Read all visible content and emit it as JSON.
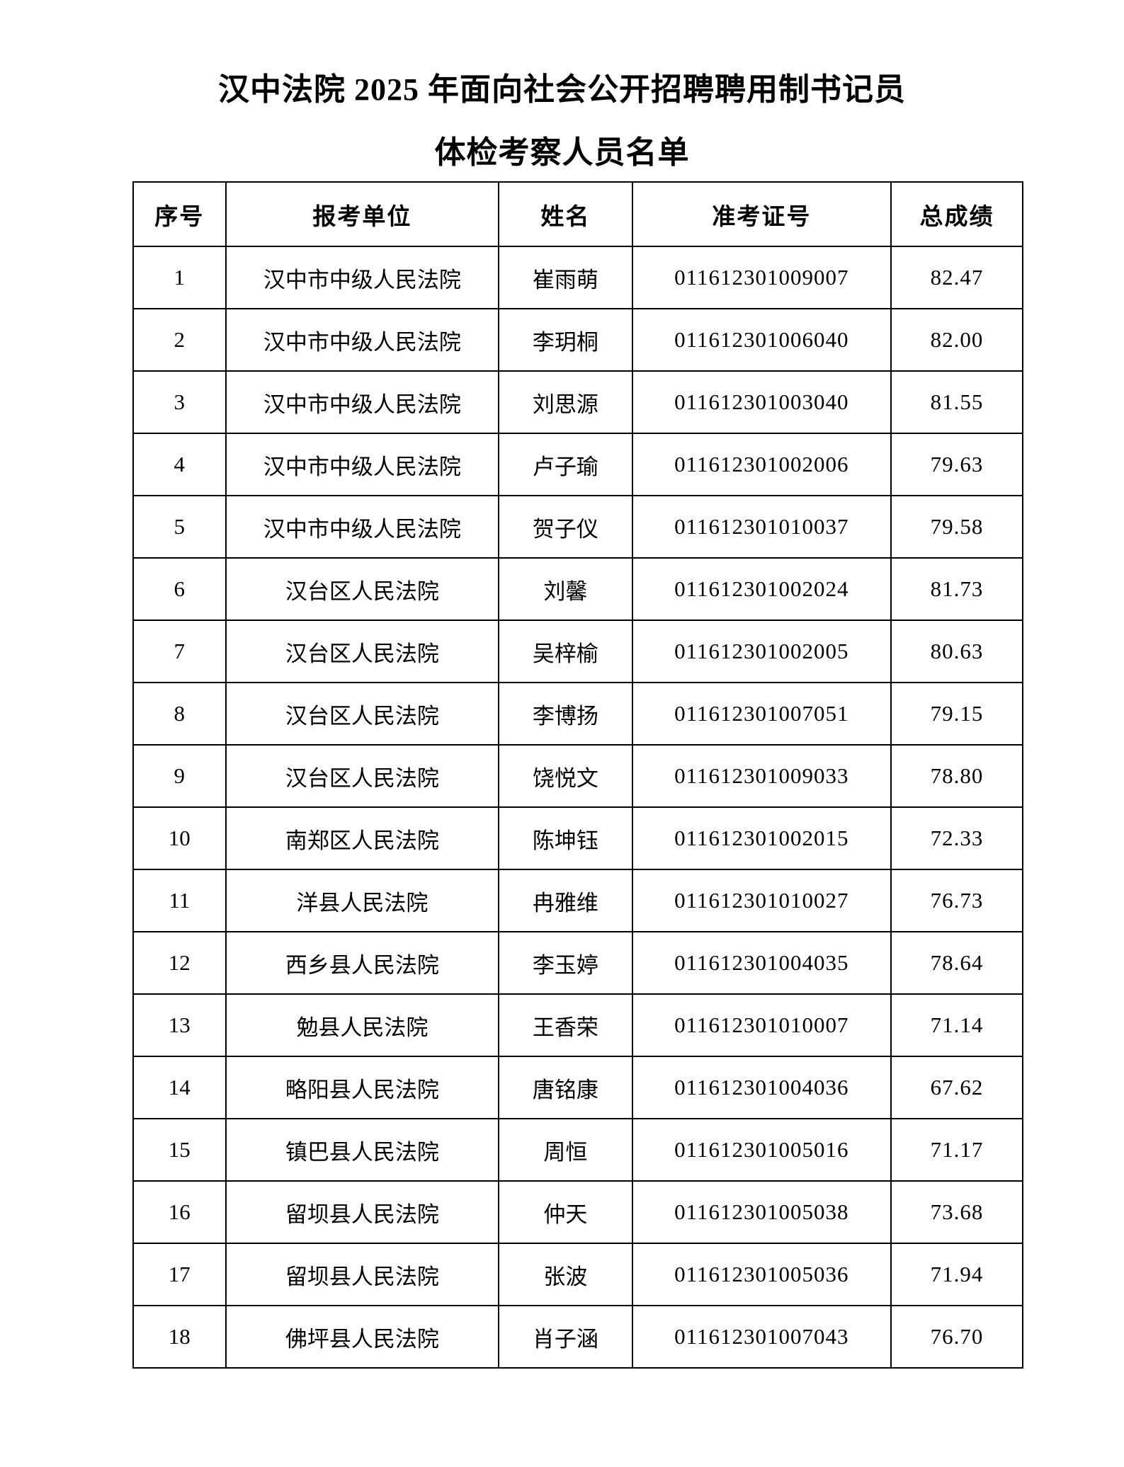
{
  "page": {
    "title_line1": "汉中法院 2025 年面向社会公开招聘聘用制书记员",
    "title_line2": "体检考察人员名单"
  },
  "table": {
    "headers": [
      "序号",
      "报考单位",
      "姓名",
      "准考证号",
      "总成绩"
    ],
    "rows": [
      {
        "no": "1",
        "unit": "汉中市中级人民法院",
        "name": "崔雨萌",
        "ticket": "011612301009007",
        "score": "82.47"
      },
      {
        "no": "2",
        "unit": "汉中市中级人民法院",
        "name": "李玥桐",
        "ticket": "011612301006040",
        "score": "82.00"
      },
      {
        "no": "3",
        "unit": "汉中市中级人民法院",
        "name": "刘思源",
        "ticket": "011612301003040",
        "score": "81.55"
      },
      {
        "no": "4",
        "unit": "汉中市中级人民法院",
        "name": "卢子瑜",
        "ticket": "011612301002006",
        "score": "79.63"
      },
      {
        "no": "5",
        "unit": "汉中市中级人民法院",
        "name": "贺子仪",
        "ticket": "011612301010037",
        "score": "79.58"
      },
      {
        "no": "6",
        "unit": "汉台区人民法院",
        "name": "刘馨",
        "ticket": "011612301002024",
        "score": "81.73"
      },
      {
        "no": "7",
        "unit": "汉台区人民法院",
        "name": "吴梓榆",
        "ticket": "011612301002005",
        "score": "80.63"
      },
      {
        "no": "8",
        "unit": "汉台区人民法院",
        "name": "李博扬",
        "ticket": "011612301007051",
        "score": "79.15"
      },
      {
        "no": "9",
        "unit": "汉台区人民法院",
        "name": "饶悦文",
        "ticket": "011612301009033",
        "score": "78.80"
      },
      {
        "no": "10",
        "unit": "南郑区人民法院",
        "name": "陈坤钰",
        "ticket": "011612301002015",
        "score": "72.33"
      },
      {
        "no": "11",
        "unit": "洋县人民法院",
        "name": "冉雅维",
        "ticket": "011612301010027",
        "score": "76.73"
      },
      {
        "no": "12",
        "unit": "西乡县人民法院",
        "name": "李玉婷",
        "ticket": "011612301004035",
        "score": "78.64"
      },
      {
        "no": "13",
        "unit": "勉县人民法院",
        "name": "王香荣",
        "ticket": "011612301010007",
        "score": "71.14"
      },
      {
        "no": "14",
        "unit": "略阳县人民法院",
        "name": "唐铭康",
        "ticket": "011612301004036",
        "score": "67.62"
      },
      {
        "no": "15",
        "unit": "镇巴县人民法院",
        "name": "周恒",
        "ticket": "011612301005016",
        "score": "71.17"
      },
      {
        "no": "16",
        "unit": "留坝县人民法院",
        "name": "仲天",
        "ticket": "011612301005038",
        "score": "73.68"
      },
      {
        "no": "17",
        "unit": "留坝县人民法院",
        "name": "张波",
        "ticket": "011612301005036",
        "score": "71.94"
      },
      {
        "no": "18",
        "unit": "佛坪县人民法院",
        "name": "肖子涵",
        "ticket": "011612301007043",
        "score": "76.70"
      }
    ]
  }
}
